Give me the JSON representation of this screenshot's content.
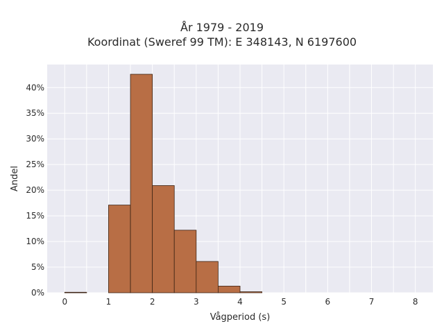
{
  "chart_data": {
    "type": "bar",
    "title_line1": "År 1979 - 2019",
    "title_line2": "Koordinat (Sweref 99 TM): E 348143, N 6197600",
    "xlabel": "Vågperiod (s)",
    "ylabel": "Andel",
    "xlim": [
      -0.4,
      8.4
    ],
    "ylim": [
      0,
      44.5
    ],
    "xticks": [
      0,
      1,
      2,
      3,
      4,
      5,
      6,
      7,
      8
    ],
    "xtick_labels": [
      "0",
      "1",
      "2",
      "3",
      "4",
      "5",
      "6",
      "7",
      "8"
    ],
    "yticks": [
      0,
      5,
      10,
      15,
      20,
      25,
      30,
      35,
      40
    ],
    "ytick_labels": [
      "0%",
      "5%",
      "10%",
      "15%",
      "20%",
      "25%",
      "30%",
      "35%",
      "40%"
    ],
    "bin_width": 0.5,
    "bins": [
      {
        "x0": 0.0,
        "value": 0.1
      },
      {
        "x0": 0.5,
        "value": 0
      },
      {
        "x0": 1.0,
        "value": 17.1
      },
      {
        "x0": 1.5,
        "value": 42.6
      },
      {
        "x0": 2.0,
        "value": 20.9
      },
      {
        "x0": 2.5,
        "value": 12.2
      },
      {
        "x0": 3.0,
        "value": 6.1
      },
      {
        "x0": 3.5,
        "value": 1.3
      },
      {
        "x0": 4.0,
        "value": 0.2
      }
    ],
    "grid": true,
    "colors": {
      "bar_fill": "#b86e45",
      "bar_stroke": "#3d2415",
      "plot_bg": "#eaeaf2",
      "grid": "#ffffff"
    }
  }
}
